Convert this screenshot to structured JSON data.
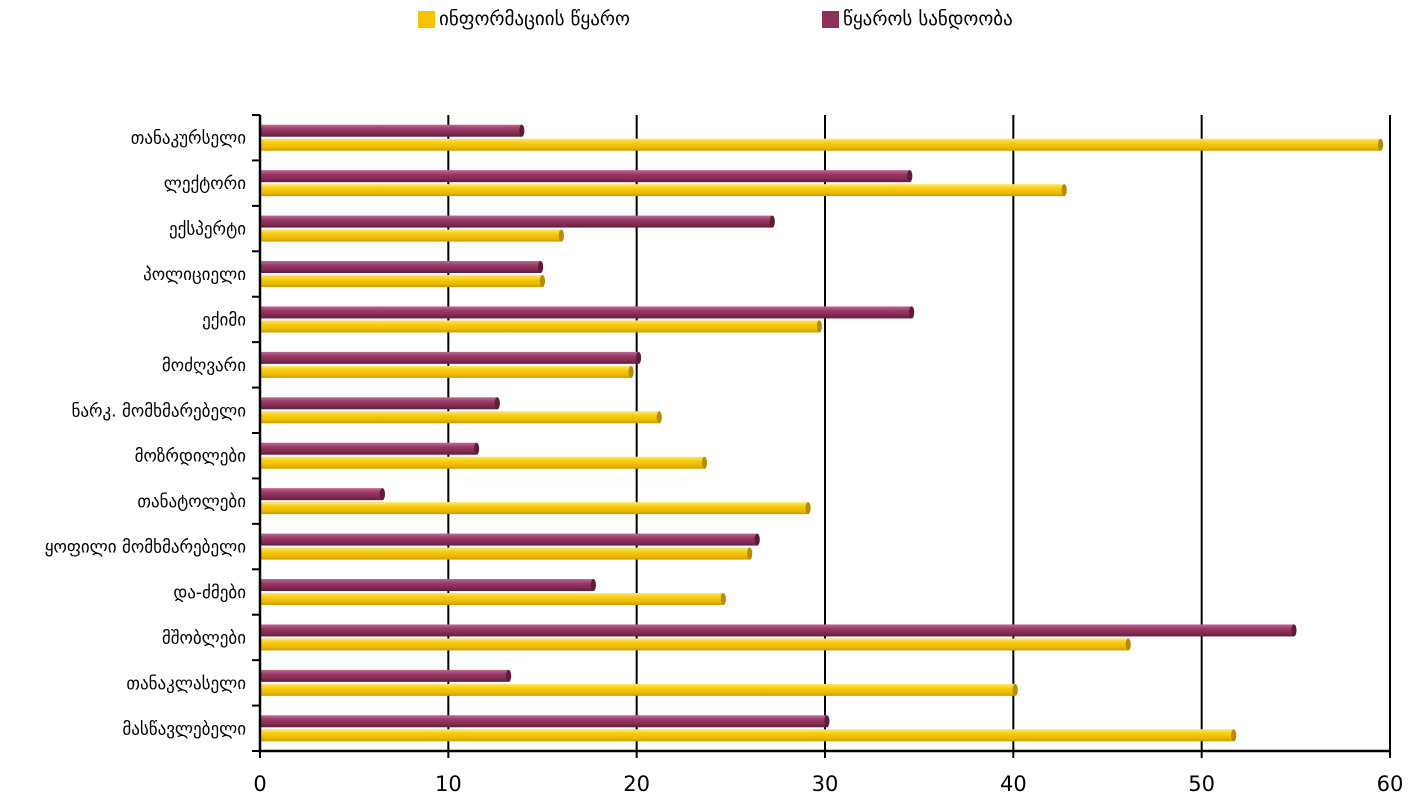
{
  "chart_data": {
    "type": "bar",
    "orientation": "horizontal",
    "categories": [
      "თანაკურსელი",
      "ლექტორი",
      "ექსპერტი",
      "პოლიციელი",
      "ექიმი",
      "მოძღვარი",
      "ნარკ. მომხმარებელი",
      "მოზრდილები",
      "თანატოლები",
      "ყოფილი მომხმარებელი",
      "და-ძმები",
      "მშობლები",
      "თანაკლასელი",
      "მასწავლებელი"
    ],
    "series": [
      {
        "name": "ინფორმაციის წყარო",
        "color": "#F5C400",
        "values": [
          59.5,
          42.7,
          16,
          15,
          29.7,
          19.7,
          21.2,
          23.6,
          29.1,
          26,
          24.6,
          46.1,
          40.1,
          51.7
        ]
      },
      {
        "name": "წყაროს სანდოობა",
        "color": "#8E2F5E",
        "values": [
          13.9,
          34.5,
          27.2,
          14.9,
          34.6,
          20.1,
          12.6,
          11.5,
          6.5,
          26.4,
          17.7,
          54.9,
          13.2,
          30.1
        ]
      }
    ],
    "xlim": [
      0,
      60
    ],
    "xticks": [
      "0",
      "10",
      "20",
      "30",
      "40",
      "50",
      "60"
    ],
    "grid": true,
    "legend_position": "top"
  }
}
